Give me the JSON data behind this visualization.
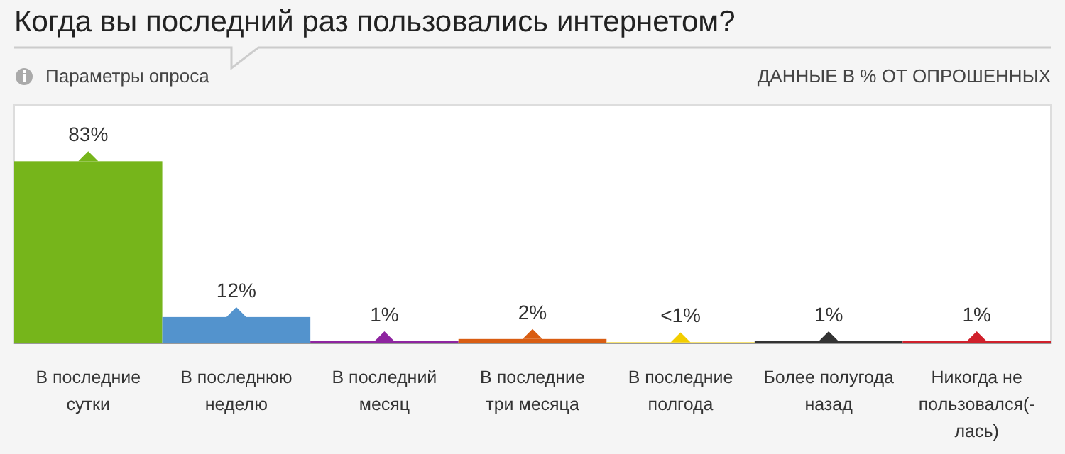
{
  "chart_data": {
    "type": "bar",
    "title": "Когда вы последний раз пользовались интернетом?",
    "subtitle": "Параметры опроса",
    "annotations": [
      "ДАННЫЕ В % ОТ ОПРОШЕННЫХ"
    ],
    "categories": [
      "В последние сутки",
      "В последнюю неделю",
      "В последний месяц",
      "В последние три месяца",
      "В последние полгода",
      "Более полугода назад",
      "Никогда не пользовался(-лась)"
    ],
    "values": [
      83,
      12,
      1,
      2,
      0.5,
      1,
      1
    ],
    "colors": [
      "#76b51b",
      "#5393cd",
      "#8e24a0",
      "#d95d12",
      "#f2cd00",
      "#333333",
      "#d0202b"
    ],
    "value_labels": [
      "83%",
      "12%",
      "1%",
      "2%",
      "<1%",
      "1%",
      "1%"
    ],
    "marker": "triangle"
  }
}
